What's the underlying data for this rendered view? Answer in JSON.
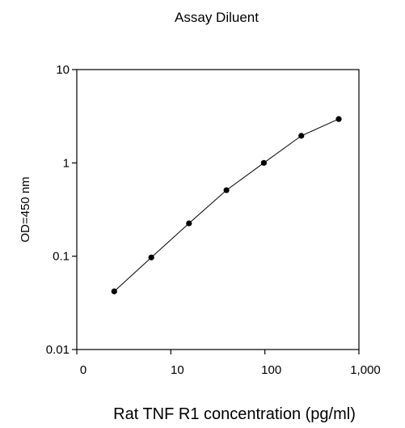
{
  "chart_data": {
    "type": "line",
    "title": "Assay Diluent",
    "xlabel": "Rat TNF R1 concentration (pg/ml)",
    "ylabel": "OD=450 nm",
    "x_scale": "log",
    "y_scale": "log",
    "xlim": [
      1,
      1000
    ],
    "ylim": [
      0.01,
      10
    ],
    "x_ticks": [
      "0",
      "10",
      "100",
      "1,000"
    ],
    "y_ticks": [
      "0.01",
      "0.1",
      "1",
      "10"
    ],
    "grid": false,
    "legend": "none",
    "series": [
      {
        "x": [
          2.5,
          6.2,
          15.6,
          39,
          97.5,
          244,
          610
        ],
        "y": [
          0.042,
          0.097,
          0.225,
          0.51,
          1.0,
          1.95,
          2.95
        ]
      }
    ],
    "colors": {
      "line": "#000000",
      "marker": "#000000"
    }
  }
}
